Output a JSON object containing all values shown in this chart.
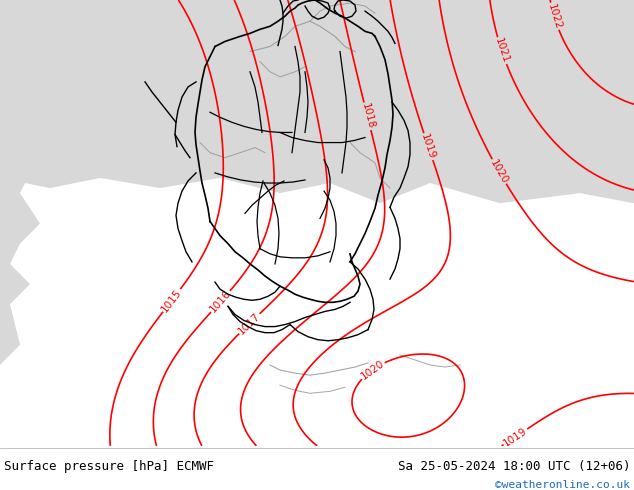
{
  "title_left": "Surface pressure [hPa] ECMWF",
  "title_right": "Sa 25-05-2024 18:00 UTC (12+06)",
  "credit": "©weatheronline.co.uk",
  "bg_color_green": "#b8f09a",
  "bg_color_gray": "#d8d8d8",
  "bg_color_white": "#ffffff",
  "contour_color_red": "#ff0000",
  "contour_color_gray": "#909090",
  "border_color": "#000000",
  "bottom_bar_color": "#ffffff",
  "bottom_text_color": "#000000",
  "credit_color": "#1a6bbf",
  "font_size_title": 9,
  "fig_width": 6.34,
  "fig_height": 4.9,
  "dpi": 100
}
